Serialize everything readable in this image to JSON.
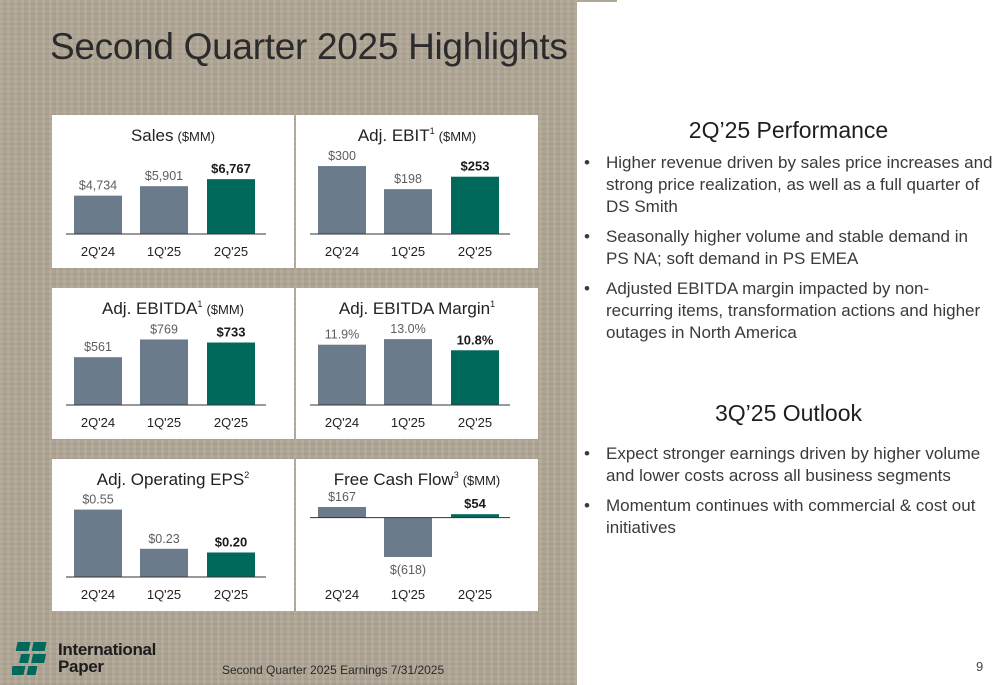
{
  "slide": {
    "title": "Second Quarter 2025 Highlights",
    "footer": "Second Quarter 2025 Earnings 7/31/2025",
    "page_number": "9",
    "logo": {
      "line1": "International",
      "line2": "Paper"
    }
  },
  "colors": {
    "background": "#b1a797",
    "prior_bar": "#6b7b8c",
    "current_bar": "#00695c",
    "text": "#3a3a3a"
  },
  "performance": {
    "heading": "2Q’25 Performance",
    "bullets": [
      "Higher revenue driven by sales price increases and strong price realization, as well as a full quarter of DS Smith",
      "Seasonally higher volume and stable demand in PS NA; soft demand in PS EMEA",
      "Adjusted EBITDA margin impacted by non-recurring items, transformation actions and higher outages in North America"
    ]
  },
  "outlook": {
    "heading": "3Q’25 Outlook",
    "bullets": [
      "Expect stronger earnings driven by higher volume and lower costs across all business segments",
      "Momentum continues with commercial & cost out initiatives"
    ]
  },
  "chart_data": [
    {
      "type": "bar",
      "title": "Sales",
      "superscript": "",
      "unit": "($MM)",
      "categories": [
        "2Q'24",
        "1Q'25",
        "2Q'25"
      ],
      "values": [
        4734,
        5901,
        6767
      ],
      "labels": [
        "$4,734",
        "$5,901",
        "$6,767"
      ],
      "ylim": [
        0,
        9500
      ]
    },
    {
      "type": "bar",
      "title": "Adj. EBIT",
      "superscript": "1",
      "unit": "($MM)",
      "categories": [
        "2Q'24",
        "1Q'25",
        "2Q'25"
      ],
      "values": [
        300,
        198,
        253
      ],
      "labels": [
        "$300",
        "$198",
        "$253"
      ],
      "ylim": [
        0,
        340
      ]
    },
    {
      "type": "bar",
      "title": "Adj. EBITDA",
      "superscript": "1",
      "unit": "($MM)",
      "categories": [
        "2Q'24",
        "1Q'25",
        "2Q'25"
      ],
      "values": [
        561,
        769,
        733
      ],
      "labels": [
        "$561",
        "$769",
        "$733"
      ],
      "ylim": [
        0,
        880
      ]
    },
    {
      "type": "bar",
      "title": "Adj. EBITDA Margin",
      "superscript": "1",
      "unit": "",
      "categories": [
        "2Q'24",
        "1Q'25",
        "2Q'25"
      ],
      "values": [
        11.9,
        13.0,
        10.8
      ],
      "labels": [
        "11.9%",
        "13.0%",
        "10.8%"
      ],
      "ylim": [
        0,
        14.8
      ]
    },
    {
      "type": "bar",
      "title": "Adj. Operating EPS",
      "superscript": "2",
      "unit": "",
      "categories": [
        "2Q'24",
        "1Q'25",
        "2Q'25"
      ],
      "values": [
        0.55,
        0.23,
        0.2
      ],
      "labels": [
        "$0.55",
        "$0.23",
        "$0.20"
      ],
      "ylim": [
        0,
        0.62
      ]
    },
    {
      "type": "bar",
      "title": "Free Cash Flow",
      "superscript": "3",
      "unit": "($MM)",
      "categories": [
        "2Q'24",
        "1Q'25",
        "2Q'25"
      ],
      "values": [
        167,
        -618,
        54
      ],
      "labels": [
        "$167",
        "$(618)",
        "$54"
      ],
      "ylim": [
        -618,
        167
      ]
    }
  ]
}
